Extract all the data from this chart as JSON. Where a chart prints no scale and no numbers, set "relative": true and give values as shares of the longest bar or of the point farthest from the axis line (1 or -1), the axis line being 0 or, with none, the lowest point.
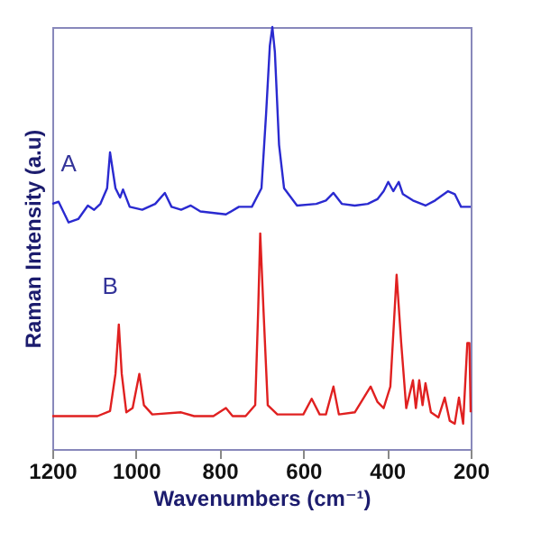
{
  "chart_data": {
    "type": "line",
    "xlabel": "Wavenumbers (cm⁻¹)",
    "ylabel": "Raman Intensity (a.u)",
    "relative": true,
    "xlim": [
      1200,
      200
    ],
    "xticks": [
      1200,
      1000,
      800,
      600,
      400,
      200
    ],
    "grid": false,
    "legend": false,
    "series": [
      {
        "name": "A",
        "color": "#2a2ad0",
        "x": [
          1200,
          1185,
          1161,
          1138,
          1115,
          1100,
          1085,
          1069,
          1062,
          1049,
          1038,
          1031,
          1015,
          985,
          954,
          931,
          915,
          892,
          869,
          846,
          785,
          754,
          723,
          700,
          689,
          680,
          674,
          668,
          658,
          646,
          615,
          569,
          546,
          528,
          508,
          477,
          446,
          423,
          408,
          397,
          385,
          372,
          362,
          338,
          308,
          285,
          254,
          238,
          223,
          200
        ],
        "values": [
          0.581,
          0.586,
          0.537,
          0.545,
          0.577,
          0.567,
          0.581,
          0.618,
          0.703,
          0.618,
          0.596,
          0.615,
          0.574,
          0.567,
          0.581,
          0.607,
          0.574,
          0.567,
          0.577,
          0.563,
          0.556,
          0.574,
          0.574,
          0.618,
          0.794,
          0.956,
          1,
          0.941,
          0.721,
          0.618,
          0.577,
          0.581,
          0.589,
          0.607,
          0.581,
          0.577,
          0.581,
          0.592,
          0.611,
          0.633,
          0.611,
          0.633,
          0.604,
          0.589,
          0.577,
          0.589,
          0.611,
          0.604,
          0.574,
          0.574
        ]
      },
      {
        "name": "B",
        "color": "#e02020",
        "x": [
          1200,
          1092,
          1062,
          1049,
          1041,
          1034,
          1023,
          1008,
          992,
          981,
          961,
          892,
          861,
          815,
          785,
          769,
          738,
          715,
          708,
          703,
          695,
          685,
          662,
          600,
          580,
          561,
          546,
          528,
          515,
          477,
          439,
          423,
          408,
          392,
          377,
          366,
          354,
          338,
          331,
          323,
          315,
          308,
          295,
          277,
          262,
          250,
          238,
          228,
          218,
          208,
          203,
          200
        ],
        "values": [
          0.078,
          0.078,
          0.09,
          0.178,
          0.295,
          0.178,
          0.087,
          0.097,
          0.178,
          0.104,
          0.082,
          0.087,
          0.078,
          0.078,
          0.097,
          0.078,
          0.078,
          0.104,
          0.325,
          0.511,
          0.325,
          0.104,
          0.082,
          0.082,
          0.119,
          0.082,
          0.082,
          0.148,
          0.082,
          0.087,
          0.148,
          0.112,
          0.097,
          0.148,
          0.413,
          0.251,
          0.097,
          0.163,
          0.097,
          0.163,
          0.104,
          0.156,
          0.087,
          0.075,
          0.122,
          0.067,
          0.06,
          0.122,
          0.06,
          0.251,
          0.251,
          0.087
        ]
      }
    ]
  }
}
